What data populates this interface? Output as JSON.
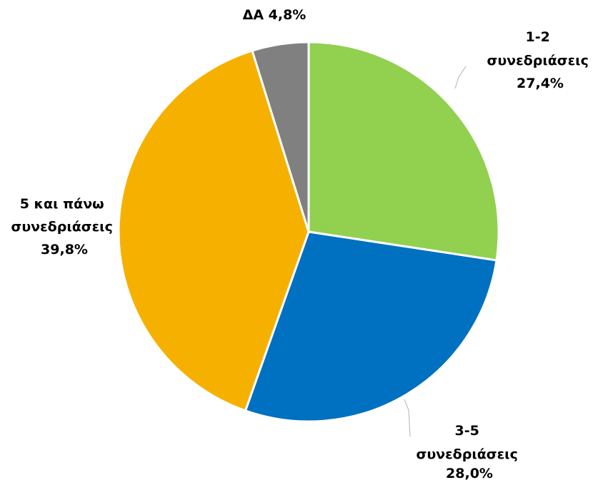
{
  "chart_data": {
    "type": "pie",
    "slices": [
      {
        "name": "1-2 συνεδριάσεις",
        "value": 27.4,
        "label_lines": [
          "1-2",
          "συνεδριάσεις",
          "27,4%"
        ],
        "color": "#92d050"
      },
      {
        "name": "3-5 συνεδριάσεις",
        "value": 28.0,
        "label_lines": [
          "3-5",
          "συνεδριάσεις",
          "28,0%"
        ],
        "color": "#0070c0"
      },
      {
        "name": "5 και πάνω συνεδριάσεις",
        "value": 39.8,
        "label_lines": [
          "5 και πάνω",
          "συνεδριάσεις",
          "39,8%"
        ],
        "color": "#f6b100"
      },
      {
        "name": "ΔΑ",
        "value": 4.8,
        "label_lines": [
          "ΔΑ 4,8%"
        ],
        "color": "#808080"
      }
    ],
    "start_angle": "12 o'clock",
    "direction": "clockwise",
    "legend": "none",
    "data_labels": "outside, bold"
  }
}
